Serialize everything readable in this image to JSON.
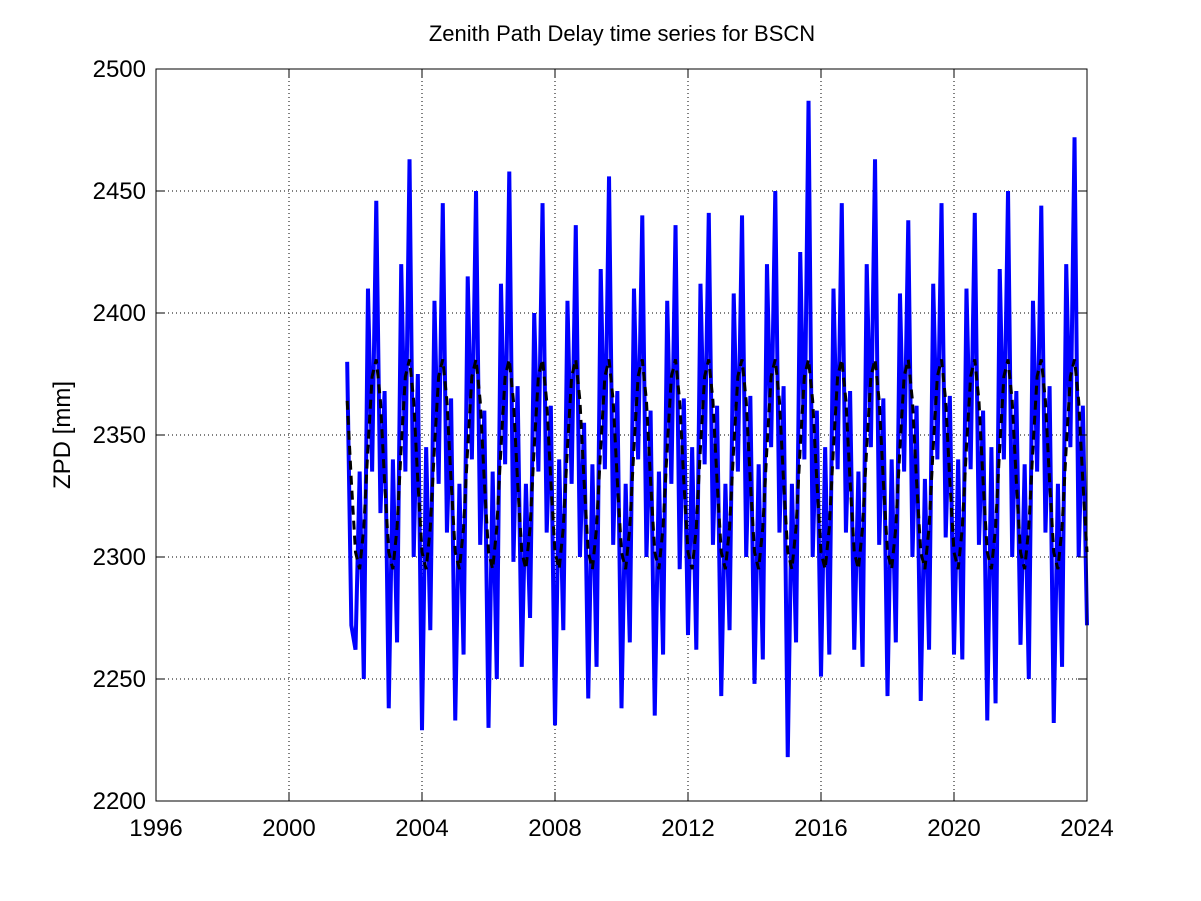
{
  "chart_data": {
    "type": "line",
    "title": "Zenith Path Delay time series for BSCN",
    "y_label": "ZPD [mm]",
    "xlim": [
      1996,
      2024
    ],
    "xticks": [
      1996,
      2000,
      2004,
      2008,
      2012,
      2016,
      2020,
      2024
    ],
    "ylim": [
      2200,
      2500
    ],
    "yticks": [
      2200,
      2250,
      2300,
      2350,
      2400,
      2450,
      2500
    ],
    "grid": true,
    "x": [
      2001.75,
      2001.875,
      2002,
      2002.125,
      2002.25,
      2002.375,
      2002.5,
      2002.625,
      2002.75,
      2002.875,
      2003,
      2003.125,
      2003.25,
      2003.375,
      2003.5,
      2003.625,
      2003.75,
      2003.875,
      2004,
      2004.125,
      2004.25,
      2004.375,
      2004.5,
      2004.625,
      2004.75,
      2004.875,
      2005,
      2005.125,
      2005.25,
      2005.375,
      2005.5,
      2005.625,
      2005.75,
      2005.875,
      2006,
      2006.125,
      2006.25,
      2006.375,
      2006.5,
      2006.625,
      2006.75,
      2006.875,
      2007,
      2007.125,
      2007.25,
      2007.375,
      2007.5,
      2007.625,
      2007.75,
      2007.875,
      2008,
      2008.125,
      2008.25,
      2008.375,
      2008.5,
      2008.625,
      2008.75,
      2008.875,
      2009,
      2009.125,
      2009.25,
      2009.375,
      2009.5,
      2009.625,
      2009.75,
      2009.875,
      2010,
      2010.125,
      2010.25,
      2010.375,
      2010.5,
      2010.625,
      2010.75,
      2010.875,
      2011,
      2011.125,
      2011.25,
      2011.375,
      2011.5,
      2011.625,
      2011.75,
      2011.875,
      2012,
      2012.125,
      2012.25,
      2012.375,
      2012.5,
      2012.625,
      2012.75,
      2012.875,
      2013,
      2013.125,
      2013.25,
      2013.375,
      2013.5,
      2013.625,
      2013.75,
      2013.875,
      2014,
      2014.125,
      2014.25,
      2014.375,
      2014.5,
      2014.625,
      2014.75,
      2014.875,
      2015,
      2015.125,
      2015.25,
      2015.375,
      2015.5,
      2015.625,
      2015.75,
      2015.875,
      2016,
      2016.125,
      2016.25,
      2016.375,
      2016.5,
      2016.625,
      2016.75,
      2016.875,
      2017,
      2017.125,
      2017.25,
      2017.375,
      2017.5,
      2017.625,
      2017.75,
      2017.875,
      2018,
      2018.125,
      2018.25,
      2018.375,
      2018.5,
      2018.625,
      2018.75,
      2018.875,
      2019,
      2019.125,
      2019.25,
      2019.375,
      2019.5,
      2019.625,
      2019.75,
      2019.875,
      2020,
      2020.125,
      2020.25,
      2020.375,
      2020.5,
      2020.625,
      2020.75,
      2020.875,
      2021,
      2021.125,
      2021.25,
      2021.375,
      2021.5,
      2021.625,
      2021.75,
      2021.875,
      2022,
      2022.125,
      2022.25,
      2022.375,
      2022.5,
      2022.625,
      2022.75,
      2022.875,
      2023,
      2023.125,
      2023.25,
      2023.375,
      2023.5,
      2023.625,
      2023.75,
      2023.875,
      2024
    ],
    "series": [
      {
        "color": "#0000ff",
        "linestyle": "solid",
        "linewidth": 4,
        "values": [
          2380,
          2272,
          2262,
          2335,
          2250,
          2410,
          2335,
          2446,
          2318,
          2368,
          2238,
          2340,
          2265,
          2420,
          2335,
          2463,
          2300,
          2375,
          2229,
          2345,
          2270,
          2405,
          2330,
          2445,
          2310,
          2365,
          2233,
          2330,
          2260,
          2415,
          2340,
          2450,
          2305,
          2360,
          2230,
          2335,
          2250,
          2412,
          2338,
          2458,
          2298,
          2370,
          2255,
          2330,
          2275,
          2400,
          2335,
          2445,
          2310,
          2362,
          2231,
          2340,
          2270,
          2405,
          2330,
          2436,
          2300,
          2355,
          2242,
          2338,
          2255,
          2418,
          2336,
          2456,
          2305,
          2368,
          2238,
          2330,
          2265,
          2410,
          2340,
          2440,
          2300,
          2360,
          2235,
          2335,
          2260,
          2405,
          2330,
          2436,
          2295,
          2365,
          2268,
          2345,
          2262,
          2412,
          2338,
          2441,
          2305,
          2362,
          2243,
          2330,
          2270,
          2408,
          2335,
          2440,
          2300,
          2366,
          2248,
          2338,
          2258,
          2420,
          2345,
          2450,
          2310,
          2370,
          2218,
          2330,
          2265,
          2425,
          2340,
          2487,
          2300,
          2360,
          2251,
          2345,
          2260,
          2410,
          2336,
          2445,
          2310,
          2368,
          2262,
          2335,
          2255,
          2420,
          2345,
          2463,
          2305,
          2365,
          2243,
          2340,
          2265,
          2408,
          2335,
          2438,
          2300,
          2362,
          2241,
          2332,
          2262,
          2412,
          2340,
          2445,
          2308,
          2366,
          2260,
          2340,
          2258,
          2410,
          2336,
          2441,
          2305,
          2360,
          2233,
          2345,
          2240,
          2418,
          2340,
          2450,
          2300,
          2368,
          2264,
          2338,
          2250,
          2405,
          2335,
          2444,
          2310,
          2370,
          2232,
          2330,
          2255,
          2420,
          2345,
          2472,
          2300,
          2362,
          2272
        ]
      },
      {
        "color": "#000000",
        "linestyle": "dashed",
        "linewidth": 3,
        "values": [
          2364,
          2331,
          2302,
          2295,
          2312,
          2345,
          2374,
          2381,
          2364,
          2331,
          2302,
          2295,
          2312,
          2345,
          2374,
          2381,
          2364,
          2331,
          2302,
          2295,
          2312,
          2345,
          2374,
          2381,
          2364,
          2331,
          2302,
          2295,
          2312,
          2345,
          2374,
          2381,
          2364,
          2331,
          2302,
          2295,
          2312,
          2345,
          2374,
          2381,
          2364,
          2331,
          2302,
          2295,
          2312,
          2345,
          2374,
          2381,
          2364,
          2331,
          2302,
          2295,
          2312,
          2345,
          2374,
          2381,
          2364,
          2331,
          2302,
          2295,
          2312,
          2345,
          2374,
          2381,
          2364,
          2331,
          2302,
          2295,
          2312,
          2345,
          2374,
          2381,
          2364,
          2331,
          2302,
          2295,
          2312,
          2345,
          2374,
          2381,
          2364,
          2331,
          2302,
          2295,
          2312,
          2345,
          2374,
          2381,
          2364,
          2331,
          2302,
          2295,
          2312,
          2345,
          2374,
          2381,
          2364,
          2331,
          2302,
          2295,
          2312,
          2345,
          2374,
          2381,
          2364,
          2331,
          2302,
          2295,
          2312,
          2345,
          2374,
          2381,
          2364,
          2331,
          2302,
          2295,
          2312,
          2345,
          2374,
          2381,
          2364,
          2331,
          2302,
          2295,
          2312,
          2345,
          2374,
          2381,
          2364,
          2331,
          2302,
          2295,
          2312,
          2345,
          2374,
          2381,
          2364,
          2331,
          2302,
          2295,
          2312,
          2345,
          2374,
          2381,
          2364,
          2331,
          2302,
          2295,
          2312,
          2345,
          2374,
          2381,
          2364,
          2331,
          2302,
          2295,
          2312,
          2345,
          2374,
          2381,
          2364,
          2331,
          2302,
          2295,
          2312,
          2345,
          2374,
          2381,
          2364,
          2331,
          2302,
          2295,
          2312,
          2345,
          2374,
          2381,
          2364,
          2331,
          2302
        ]
      }
    ]
  }
}
